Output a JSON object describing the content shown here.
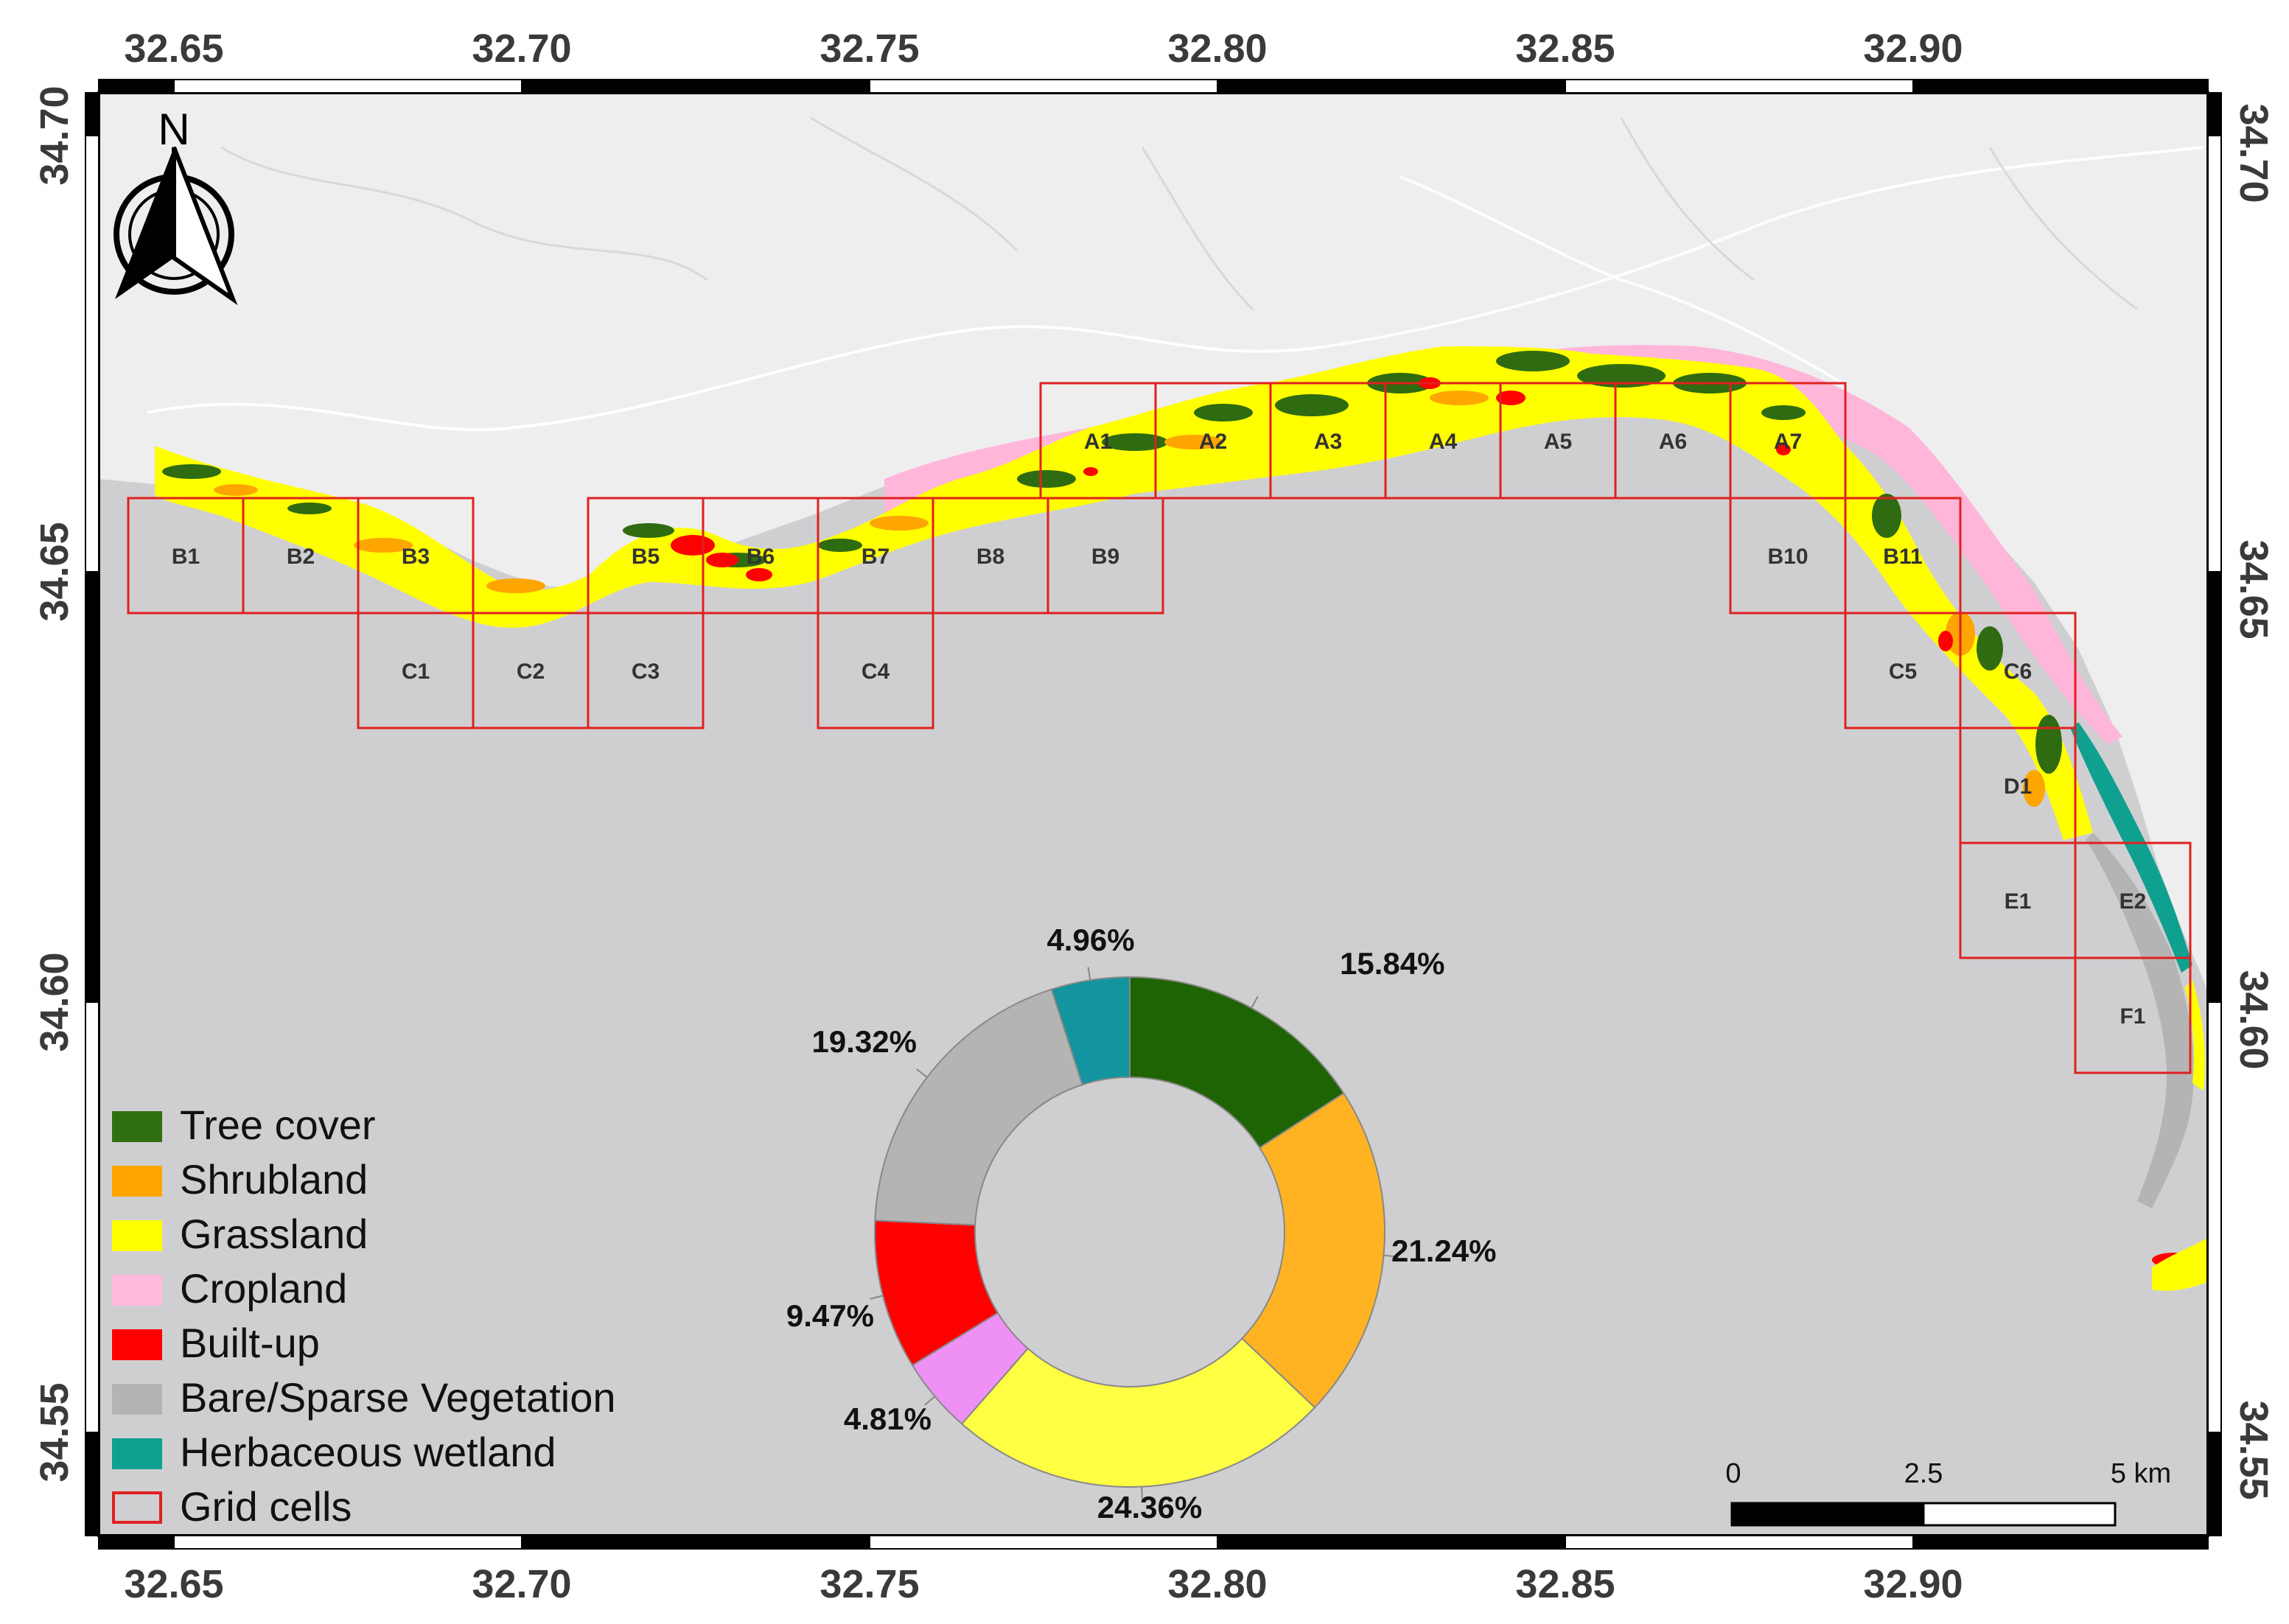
{
  "map": {
    "north_label": "N",
    "top_ticks": [
      "32.65",
      "32.70",
      "32.75",
      "32.80",
      "32.85",
      "32.90"
    ],
    "bottom_ticks": [
      "32.65",
      "32.70",
      "32.75",
      "32.80",
      "32.85",
      "32.90"
    ],
    "left_ticks": [
      "34.70",
      "34.65",
      "34.60",
      "34.55"
    ],
    "right_ticks": [
      "34.70",
      "34.65",
      "34.60",
      "34.55"
    ],
    "colors": {
      "land": "#eeeeee",
      "sea": "#cfcfd1",
      "grid": "#e02020",
      "tree": "#2f6b10",
      "shrub": "#ffa500",
      "grass": "#ffff00",
      "crop": "#ffb6d9",
      "built": "#ff0000",
      "bare": "#b4b4b4",
      "wetland": "#10a090"
    },
    "grid_cells": [
      "A1",
      "A2",
      "A3",
      "A4",
      "A5",
      "A6",
      "A7",
      "B1",
      "B2",
      "B3",
      "B5",
      "B6",
      "B7",
      "B8",
      "B9",
      "B10",
      "B11",
      "C1",
      "C2",
      "C3",
      "C4",
      "C5",
      "C6",
      "D1",
      "E1",
      "E2",
      "F1"
    ]
  },
  "legend": {
    "items": [
      {
        "label": "Tree cover",
        "color": "#2f7010",
        "icon": "filled-square"
      },
      {
        "label": "Shrubland",
        "color": "#ffa500",
        "icon": "filled-square"
      },
      {
        "label": "Grassland",
        "color": "#ffff00",
        "icon": "filled-square"
      },
      {
        "label": "Cropland",
        "color": "#ffbadc",
        "icon": "filled-square"
      },
      {
        "label": "Built-up",
        "color": "#ff0000",
        "icon": "filled-square"
      },
      {
        "label": "Bare/Sparse Vegetation",
        "color": "#b4b4b4",
        "icon": "filled-square"
      },
      {
        "label": "Herbaceous wetland",
        "color": "#10a090",
        "icon": "filled-square"
      },
      {
        "label": "Grid cells",
        "color": "#e02020",
        "icon": "outlined-square"
      }
    ]
  },
  "chart_data": {
    "type": "pie",
    "donut": true,
    "categories": [
      "Tree cover",
      "Shrubland",
      "Grassland",
      "Cropland",
      "Built-up",
      "Bare/Sparse Vegetation",
      "Herbaceous wetland"
    ],
    "values": [
      15.84,
      21.24,
      24.36,
      4.81,
      9.47,
      19.32,
      4.96
    ],
    "labels": [
      "15.84%",
      "21.24%",
      "24.36%",
      "4.81%",
      "9.47%",
      "19.32%",
      "4.96%"
    ],
    "colors": [
      "#1f6404",
      "#ffb323",
      "#ffff44",
      "#ee90f4",
      "#ff0000",
      "#b4b4b4",
      "#12959e"
    ]
  },
  "scale_bar": {
    "labels": [
      "0",
      "2.5",
      "5 km"
    ]
  }
}
